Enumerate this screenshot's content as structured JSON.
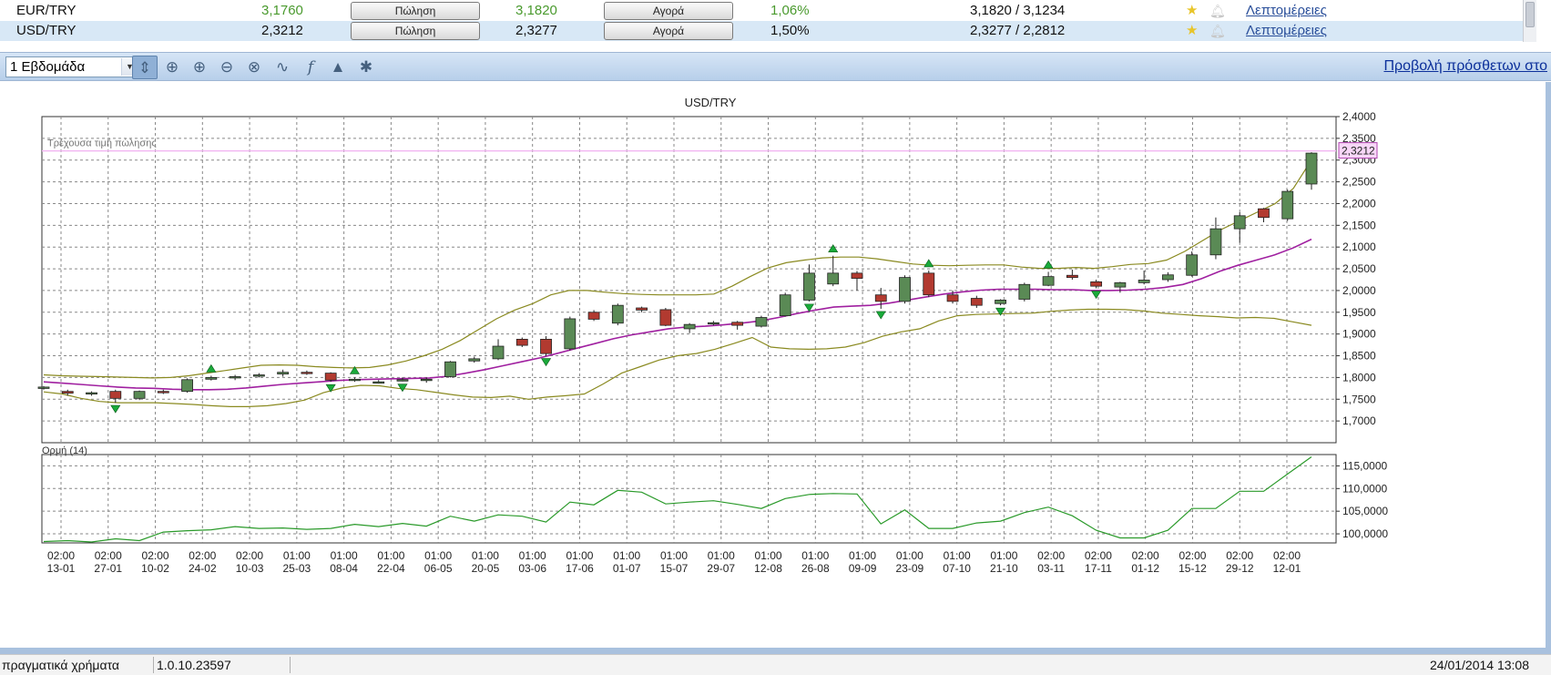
{
  "quotes": [
    {
      "pair": "EUR/TRY",
      "sell": "3,1760",
      "sell_button": "Πώληση",
      "buy": "3,1820",
      "buy_button": "Αγορά",
      "change": "1,06%",
      "range": "3,1820 / 3,1234",
      "details_link": "Λεπτομέρειες",
      "favorite": true,
      "alert": false
    },
    {
      "pair": "USD/TRY",
      "sell": "2,3212",
      "sell_button": "Πώληση",
      "buy": "2,3277",
      "buy_button": "Αγορά",
      "change": "1,50%",
      "range": "2,3277 / 2,2812",
      "details_link": "Λεπτομέρειες",
      "favorite": true,
      "alert": false
    }
  ],
  "toolbar": {
    "period_value": "1 Εβδομάδα",
    "icons": [
      "cursor-icon",
      "crosshair-icon",
      "zoom-in-icon",
      "zoom-out-icon",
      "zoom-reset-icon",
      "line-chart-icon",
      "indicator-function-icon",
      "alert-bell-icon",
      "settings-gear-icon"
    ],
    "more_link": "Προβολή πρόσθετων στο"
  },
  "colors": {
    "up_candle": "#5a8a55",
    "down_candle": "#b23a30",
    "moving_average": "#a020a0",
    "bollinger": "#8a8a20",
    "momentum": "#2a9a2a",
    "current_price_line": "#f2b8f2",
    "signal_arrow": "#1aaa3a"
  },
  "chart_data": [
    {
      "type": "candlestick",
      "title": "USD/TRY",
      "current_price_label": "Τρέχουσα τιμή πώλησης",
      "current_price": 2.3212,
      "current_price_text": "2,3212",
      "ylim": [
        1.65,
        2.4
      ],
      "yticks": [
        "1,7000",
        "1,7500",
        "1,8000",
        "1,8500",
        "1,9000",
        "1,9500",
        "2,0000",
        "2,0500",
        "2,1000",
        "2,1500",
        "2,2000",
        "2,2500",
        "2,3000",
        "2,3500",
        "2,4000"
      ],
      "grid": true,
      "candles": [
        [
          1.775,
          1.78,
          1.772,
          1.778
        ],
        [
          1.768,
          1.772,
          1.758,
          1.764
        ],
        [
          1.763,
          1.768,
          1.758,
          1.765
        ],
        [
          1.768,
          1.772,
          1.742,
          1.752
        ],
        [
          1.752,
          1.77,
          1.748,
          1.768
        ],
        [
          1.768,
          1.772,
          1.762,
          1.766
        ],
        [
          1.768,
          1.798,
          1.765,
          1.795
        ],
        [
          1.796,
          1.804,
          1.793,
          1.8
        ],
        [
          1.8,
          1.806,
          1.794,
          1.802
        ],
        [
          1.803,
          1.81,
          1.8,
          1.806
        ],
        [
          1.808,
          1.818,
          1.802,
          1.812
        ],
        [
          1.812,
          1.816,
          1.806,
          1.811
        ],
        [
          1.81,
          1.812,
          1.79,
          1.794
        ],
        [
          1.795,
          1.8,
          1.79,
          1.796
        ],
        [
          1.79,
          1.794,
          1.786,
          1.79
        ],
        [
          1.795,
          1.8,
          1.791,
          1.795
        ],
        [
          1.795,
          1.8,
          1.788,
          1.796
        ],
        [
          1.802,
          1.838,
          1.8,
          1.836
        ],
        [
          1.838,
          1.848,
          1.834,
          1.843
        ],
        [
          1.843,
          1.888,
          1.84,
          1.872
        ],
        [
          1.888,
          1.892,
          1.87,
          1.874
        ],
        [
          1.888,
          1.895,
          1.85,
          1.855
        ],
        [
          1.866,
          1.94,
          1.862,
          1.935
        ],
        [
          1.95,
          1.955,
          1.93,
          1.934
        ],
        [
          1.925,
          1.97,
          1.92,
          1.966
        ],
        [
          1.96,
          1.963,
          1.95,
          1.955
        ],
        [
          1.956,
          1.96,
          1.918,
          1.92
        ],
        [
          1.912,
          1.925,
          1.902,
          1.922
        ],
        [
          1.925,
          1.93,
          1.92,
          1.926
        ],
        [
          1.927,
          1.93,
          1.91,
          1.92
        ],
        [
          1.918,
          1.942,
          1.915,
          1.938
        ],
        [
          1.942,
          1.995,
          1.94,
          1.99
        ],
        [
          1.978,
          2.06,
          1.975,
          2.04
        ],
        [
          2.015,
          2.08,
          2.01,
          2.04
        ],
        [
          2.04,
          2.045,
          2.0,
          2.028
        ],
        [
          1.99,
          2.006,
          1.958,
          1.975
        ],
        [
          1.975,
          2.035,
          1.97,
          2.03
        ],
        [
          2.04,
          2.046,
          1.985,
          1.99
        ],
        [
          1.99,
          2.0,
          1.97,
          1.975
        ],
        [
          1.982,
          1.988,
          1.96,
          1.966
        ],
        [
          1.97,
          1.98,
          1.966,
          1.978
        ],
        [
          1.98,
          2.018,
          1.975,
          2.014
        ],
        [
          2.012,
          2.043,
          2.01,
          2.032
        ],
        [
          2.035,
          2.048,
          2.025,
          2.03
        ],
        [
          2.02,
          2.025,
          2.005,
          2.01
        ],
        [
          2.008,
          2.02,
          1.995,
          2.018
        ],
        [
          2.018,
          2.046,
          2.014,
          2.024
        ],
        [
          2.025,
          2.042,
          2.02,
          2.036
        ],
        [
          2.035,
          2.09,
          2.032,
          2.082
        ],
        [
          2.082,
          2.168,
          2.072,
          2.142
        ],
        [
          2.142,
          2.18,
          2.11,
          2.172
        ],
        [
          2.188,
          2.19,
          2.157,
          2.168
        ],
        [
          2.165,
          2.232,
          2.16,
          2.228
        ],
        [
          2.245,
          2.318,
          2.232,
          2.316
        ]
      ],
      "moving_average": [
        1.79,
        1.787,
        1.784,
        1.781,
        1.778,
        1.776,
        1.775,
        1.773,
        1.772,
        1.772,
        1.773,
        1.776,
        1.78,
        1.784,
        1.787,
        1.79,
        1.793,
        1.795,
        1.796,
        1.797,
        1.798,
        1.799,
        1.803,
        1.81,
        1.818,
        1.827,
        1.836,
        1.845,
        1.856,
        1.867,
        1.878,
        1.889,
        1.898,
        1.905,
        1.912,
        1.916,
        1.918,
        1.921,
        1.925,
        1.93,
        1.938,
        1.947,
        1.955,
        1.962,
        1.964,
        1.966,
        1.971,
        1.978,
        1.985,
        1.992,
        1.997,
        2.001,
        2.003,
        2.003,
        2.003,
        2.002,
        2.002,
        2.0,
        2.0,
        2.001,
        2.003,
        2.007,
        2.014,
        2.027,
        2.044,
        2.058,
        2.07,
        2.082,
        2.098,
        2.118
      ],
      "bollinger_upper": [
        1.806,
        1.804,
        1.803,
        1.802,
        1.801,
        1.8,
        1.799,
        1.8,
        1.804,
        1.81,
        1.816,
        1.822,
        1.828,
        1.829,
        1.828,
        1.825,
        1.823,
        1.822,
        1.823,
        1.829,
        1.838,
        1.85,
        1.865,
        1.885,
        1.91,
        1.935,
        1.955,
        1.97,
        1.99,
        2.0,
        2.0,
        1.996,
        1.993,
        1.991,
        1.99,
        1.99,
        1.99,
        1.992,
        2.01,
        2.032,
        2.052,
        2.064,
        2.07,
        2.075,
        2.077,
        2.077,
        2.073,
        2.067,
        2.061,
        2.058,
        2.057,
        2.058,
        2.059,
        2.059,
        2.054,
        2.051,
        2.051,
        2.053,
        2.051,
        2.055,
        2.06,
        2.062,
        2.07,
        2.09,
        2.115,
        2.14,
        2.16,
        2.18,
        2.2,
        2.235,
        2.3
      ],
      "bollinger_lower": [
        1.767,
        1.762,
        1.752,
        1.745,
        1.742,
        1.742,
        1.742,
        1.74,
        1.738,
        1.735,
        1.733,
        1.733,
        1.735,
        1.74,
        1.748,
        1.765,
        1.776,
        1.782,
        1.781,
        1.775,
        1.772,
        1.766,
        1.76,
        1.755,
        1.754,
        1.757,
        1.75,
        1.755,
        1.758,
        1.762,
        1.785,
        1.81,
        1.825,
        1.84,
        1.85,
        1.855,
        1.865,
        1.878,
        1.892,
        1.87,
        1.866,
        1.865,
        1.866,
        1.87,
        1.88,
        1.895,
        1.905,
        1.912,
        1.93,
        1.942,
        1.945,
        1.946,
        1.947,
        1.948,
        1.952,
        1.955,
        1.957,
        1.957,
        1.956,
        1.953,
        1.948,
        1.945,
        1.942,
        1.94,
        1.937,
        1.938,
        1.936,
        1.928,
        1.92
      ],
      "signals_up": [
        7,
        13,
        33,
        37,
        42
      ],
      "signals_down": [
        3,
        12,
        15,
        21,
        32,
        35,
        40,
        44
      ]
    },
    {
      "type": "line",
      "title": "Ορμή (14)",
      "ylim": [
        98.0,
        117.5
      ],
      "yticks": [
        "100,0000",
        "105,0000",
        "110,0000",
        "115,0000"
      ],
      "grid": true,
      "values": [
        98.3,
        98.5,
        98.2,
        98.9,
        98.5,
        100.4,
        100.7,
        100.9,
        101.6,
        101.2,
        101.3,
        101.0,
        101.2,
        102.1,
        101.6,
        102.3,
        101.7,
        103.9,
        102.8,
        104.2,
        103.9,
        102.6,
        107.0,
        106.4,
        109.6,
        109.2,
        106.6,
        107.0,
        107.3,
        106.5,
        105.6,
        107.8,
        108.7,
        108.9,
        108.8,
        102.2,
        105.3,
        101.2,
        101.2,
        102.4,
        102.8,
        104.7,
        105.9,
        104.0,
        100.8,
        99.1,
        99.1,
        100.8,
        105.6,
        105.6,
        109.4,
        109.4,
        113.2,
        117.0
      ],
      "x_labels": [
        [
          "02:00",
          "13-01"
        ],
        [
          "02:00",
          "27-01"
        ],
        [
          "02:00",
          "10-02"
        ],
        [
          "02:00",
          "24-02"
        ],
        [
          "02:00",
          "10-03"
        ],
        [
          "01:00",
          "25-03"
        ],
        [
          "01:00",
          "08-04"
        ],
        [
          "01:00",
          "22-04"
        ],
        [
          "01:00",
          "06-05"
        ],
        [
          "01:00",
          "20-05"
        ],
        [
          "01:00",
          "03-06"
        ],
        [
          "01:00",
          "17-06"
        ],
        [
          "01:00",
          "01-07"
        ],
        [
          "01:00",
          "15-07"
        ],
        [
          "01:00",
          "29-07"
        ],
        [
          "01:00",
          "12-08"
        ],
        [
          "01:00",
          "26-08"
        ],
        [
          "01:00",
          "09-09"
        ],
        [
          "01:00",
          "23-09"
        ],
        [
          "01:00",
          "07-10"
        ],
        [
          "01:00",
          "21-10"
        ],
        [
          "02:00",
          "03-11"
        ],
        [
          "02:00",
          "17-11"
        ],
        [
          "02:00",
          "01-12"
        ],
        [
          "02:00",
          "15-12"
        ],
        [
          "02:00",
          "29-12"
        ],
        [
          "02:00",
          "12-01"
        ]
      ]
    }
  ],
  "status": {
    "mode": "πραγματικά χρήματα",
    "version": "1.0.10.23597",
    "datetime": "24/01/2014 13:08"
  }
}
